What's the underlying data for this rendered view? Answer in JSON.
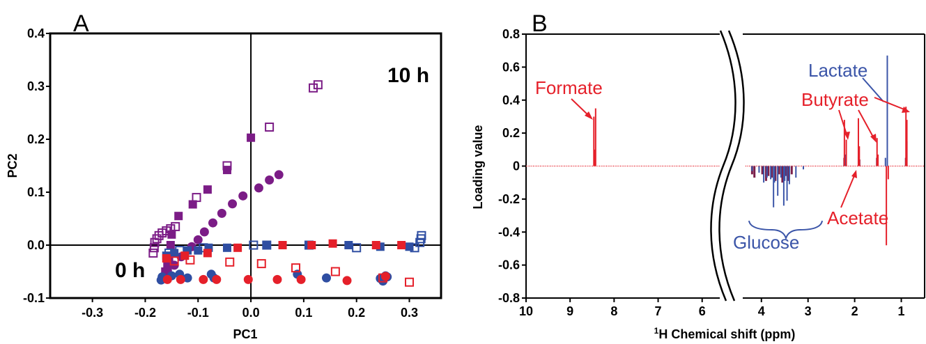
{
  "panels": {
    "a": "A",
    "b": "B"
  },
  "chart_data": [
    {
      "type": "scatter",
      "panel": "A",
      "xlabel": "PC1",
      "ylabel": "PC2",
      "xlim": [
        -0.38,
        0.36
      ],
      "ylim": [
        -0.1,
        0.4
      ],
      "xticks": [
        "-0.3",
        "-0.2",
        "-0.1",
        "0.0",
        "0.1",
        "0.2",
        "0.3"
      ],
      "yticks": [
        "-0.1",
        "0.0",
        "0.1",
        "0.2",
        "0.3",
        "0.4"
      ],
      "annotations": {
        "late": "10 h",
        "early": "0 h"
      },
      "colors": {
        "purple": "#7b1c86",
        "blue": "#2f4ea2",
        "red": "#e5202a"
      },
      "series": [
        {
          "color": "purple",
          "marker": "square-open",
          "points": [
            [
              -0.185,
              -0.015
            ],
            [
              -0.183,
              -0.005
            ],
            [
              -0.182,
              0.005
            ],
            [
              -0.178,
              0.012
            ],
            [
              -0.174,
              0.018
            ],
            [
              -0.168,
              0.023
            ],
            [
              -0.16,
              0.027
            ],
            [
              -0.152,
              0.031
            ],
            [
              -0.143,
              0.035
            ],
            [
              -0.103,
              0.09
            ],
            [
              -0.045,
              0.15
            ],
            [
              0.035,
              0.223
            ],
            [
              0.118,
              0.297
            ],
            [
              0.127,
              0.303
            ]
          ]
        },
        {
          "color": "purple",
          "marker": "square-filled",
          "points": [
            [
              -0.162,
              -0.05
            ],
            [
              -0.158,
              -0.038
            ],
            [
              -0.155,
              -0.025
            ],
            [
              -0.152,
              0.0
            ],
            [
              -0.15,
              0.02
            ],
            [
              -0.137,
              0.055
            ],
            [
              -0.11,
              0.077
            ],
            [
              -0.082,
              0.105
            ],
            [
              -0.045,
              0.142
            ],
            [
              0.0,
              0.203
            ]
          ]
        },
        {
          "color": "purple",
          "marker": "circle-filled",
          "points": [
            [
              -0.162,
              -0.058
            ],
            [
              -0.158,
              -0.048
            ],
            [
              -0.145,
              -0.038
            ],
            [
              -0.132,
              -0.022
            ],
            [
              -0.112,
              -0.003
            ],
            [
              -0.1,
              0.01
            ],
            [
              -0.088,
              0.025
            ],
            [
              -0.072,
              0.042
            ],
            [
              -0.055,
              0.06
            ],
            [
              -0.035,
              0.078
            ],
            [
              -0.015,
              0.093
            ],
            [
              0.015,
              0.108
            ],
            [
              0.035,
              0.123
            ],
            [
              0.053,
              0.133
            ]
          ]
        },
        {
          "color": "blue",
          "marker": "square-open",
          "points": [
            [
              -0.155,
              -0.015
            ],
            [
              -0.135,
              -0.01
            ],
            [
              -0.09,
              -0.005
            ],
            [
              0.005,
              0.0
            ],
            [
              0.03,
              0.0
            ],
            [
              0.11,
              0.0
            ],
            [
              0.2,
              -0.005
            ],
            [
              0.31,
              -0.005
            ],
            [
              0.32,
              0.005
            ],
            [
              0.322,
              0.012
            ],
            [
              0.323,
              0.018
            ]
          ]
        },
        {
          "color": "blue",
          "marker": "square-filled",
          "points": [
            [
              -0.16,
              -0.02
            ],
            [
              -0.145,
              -0.015
            ],
            [
              -0.12,
              -0.01
            ],
            [
              -0.1,
              -0.01
            ],
            [
              -0.08,
              -0.005
            ],
            [
              -0.045,
              -0.005
            ],
            [
              0.03,
              0.0
            ],
            [
              0.11,
              0.0
            ],
            [
              0.185,
              0.0
            ],
            [
              0.245,
              -0.003
            ],
            [
              0.3,
              -0.003
            ]
          ]
        },
        {
          "color": "blue",
          "marker": "circle-filled",
          "points": [
            [
              -0.168,
              -0.06
            ],
            [
              -0.17,
              -0.066
            ],
            [
              -0.15,
              -0.058
            ],
            [
              -0.135,
              -0.055
            ],
            [
              -0.12,
              -0.062
            ],
            [
              -0.075,
              -0.055
            ],
            [
              -0.07,
              -0.062
            ],
            [
              0.088,
              -0.055
            ],
            [
              0.143,
              -0.062
            ],
            [
              0.245,
              -0.063
            ],
            [
              0.25,
              -0.068
            ],
            [
              0.255,
              -0.058
            ],
            [
              0.258,
              -0.06
            ]
          ]
        },
        {
          "color": "red",
          "marker": "square-open",
          "points": [
            [
              -0.145,
              -0.03
            ],
            [
              -0.115,
              -0.028
            ],
            [
              -0.04,
              -0.032
            ],
            [
              0.02,
              -0.035
            ],
            [
              0.085,
              -0.043
            ],
            [
              0.16,
              -0.05
            ],
            [
              0.25,
              -0.062
            ],
            [
              0.3,
              -0.07
            ]
          ]
        },
        {
          "color": "red",
          "marker": "square-filled",
          "points": [
            [
              -0.16,
              -0.025
            ],
            [
              -0.125,
              -0.02
            ],
            [
              -0.082,
              -0.015
            ],
            [
              -0.025,
              -0.005
            ],
            [
              0.06,
              0.0
            ],
            [
              0.115,
              0.0
            ],
            [
              0.155,
              0.003
            ],
            [
              0.237,
              0.0
            ],
            [
              0.285,
              0.0
            ]
          ]
        },
        {
          "color": "red",
          "marker": "circle-filled",
          "points": [
            [
              -0.158,
              -0.065
            ],
            [
              -0.133,
              -0.065
            ],
            [
              -0.09,
              -0.065
            ],
            [
              -0.065,
              -0.065
            ],
            [
              -0.005,
              -0.065
            ],
            [
              0.05,
              -0.065
            ],
            [
              0.095,
              -0.065
            ],
            [
              0.182,
              -0.067
            ],
            [
              0.255,
              -0.059
            ]
          ]
        }
      ]
    },
    {
      "type": "bar",
      "panel": "B",
      "xlabel_sup": "1",
      "xlabel": "H Chemical shift (ppm)",
      "ylabel": "Loading value",
      "ylim": [
        -0.8,
        0.8
      ],
      "yticks": [
        "0.8",
        "0.6",
        "0.4",
        "0.2",
        "0",
        "-0.2",
        "-0.4",
        "-0.6",
        "-0.8"
      ],
      "xticks_left": [
        "10",
        "9",
        "8",
        "7",
        "6"
      ],
      "xticks_right": [
        "4",
        "3",
        "2",
        "1"
      ],
      "x_left_range": [
        10,
        5.6
      ],
      "x_right_range": [
        4.4,
        0.5
      ],
      "axis_break": true,
      "colors": {
        "red": "#e5202a",
        "blue": "#3b55a8",
        "navy": "#2e3a86",
        "maroon": "#7a1f4a"
      },
      "labels": {
        "formate": "Formate",
        "lactate": "Lactate",
        "butyrate": "Butyrate",
        "acetate": "Acetate",
        "glucose": "Glucose"
      },
      "peaks_red": [
        [
          8.46,
          0.3
        ],
        [
          8.42,
          0.35
        ],
        [
          8.44,
          0.1
        ],
        [
          2.22,
          0.28
        ],
        [
          2.18,
          0.16
        ],
        [
          1.92,
          0.29
        ],
        [
          1.9,
          0.12
        ],
        [
          1.52,
          0.17
        ],
        [
          1.5,
          0.07
        ],
        [
          0.9,
          0.36
        ],
        [
          0.88,
          0.28
        ],
        [
          1.32,
          -0.48
        ],
        [
          1.28,
          -0.08
        ]
      ],
      "peaks_blue": [
        [
          8.45,
          0.08
        ],
        [
          1.3,
          0.67
        ],
        [
          1.34,
          0.05
        ],
        [
          0.88,
          0.15
        ],
        [
          2.2,
          0.07
        ],
        [
          1.92,
          0.06
        ],
        [
          3.95,
          -0.1
        ],
        [
          3.88,
          -0.07
        ],
        [
          3.8,
          -0.08
        ],
        [
          3.74,
          -0.25
        ],
        [
          3.72,
          -0.1
        ],
        [
          3.65,
          -0.18
        ],
        [
          3.58,
          -0.07
        ],
        [
          3.52,
          -0.24
        ],
        [
          3.5,
          -0.09
        ],
        [
          3.45,
          -0.21
        ],
        [
          3.4,
          -0.11
        ],
        [
          3.26,
          -0.07
        ],
        [
          4.2,
          -0.03
        ],
        [
          4.05,
          -0.04
        ],
        [
          3.1,
          -0.02
        ]
      ],
      "peaks_maroon": [
        [
          4.2,
          -0.05
        ],
        [
          4.15,
          -0.07
        ],
        [
          3.98,
          -0.05
        ],
        [
          3.9,
          -0.09
        ],
        [
          3.85,
          -0.06
        ],
        [
          3.78,
          -0.07
        ],
        [
          3.7,
          -0.09
        ],
        [
          3.62,
          -0.05
        ],
        [
          3.55,
          -0.1
        ],
        [
          3.48,
          -0.06
        ],
        [
          3.42,
          -0.09
        ],
        [
          3.35,
          -0.05
        ],
        [
          2.22,
          0.05
        ],
        [
          1.9,
          0.04
        ],
        [
          1.52,
          0.05
        ],
        [
          0.9,
          0.05
        ]
      ]
    }
  ]
}
